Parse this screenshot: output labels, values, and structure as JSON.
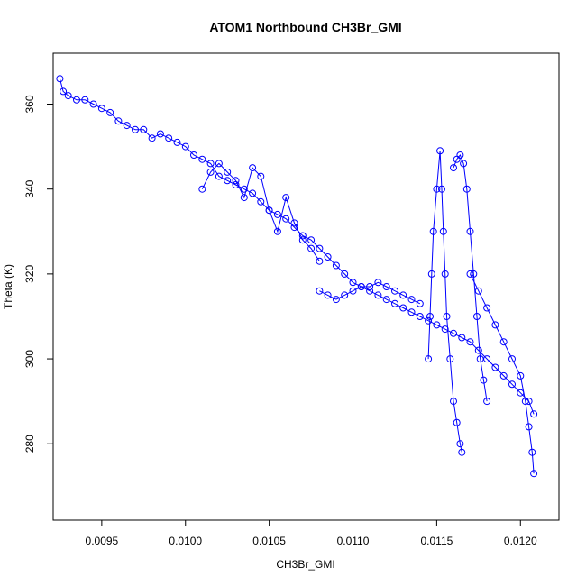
{
  "chart_data": {
    "type": "scatter",
    "title": "ATOM1 Northbound CH3Br_GMI",
    "xlabel": "CH3Br_GMI",
    "ylabel": "Theta (K)",
    "xlim": [
      0.00921,
      0.01223
    ],
    "ylim": [
      262,
      372
    ],
    "x_ticks": [
      {
        "value": 0.0095,
        "label": "0.0095"
      },
      {
        "value": 0.01,
        "label": "0.0100"
      },
      {
        "value": 0.0105,
        "label": "0.0105"
      },
      {
        "value": 0.011,
        "label": "0.0110"
      },
      {
        "value": 0.0115,
        "label": "0.0115"
      },
      {
        "value": 0.012,
        "label": "0.0120"
      }
    ],
    "y_ticks": [
      {
        "value": 280,
        "label": "280"
      },
      {
        "value": 300,
        "label": "300"
      },
      {
        "value": 320,
        "label": "320"
      },
      {
        "value": 340,
        "label": "340"
      },
      {
        "value": 360,
        "label": "360"
      }
    ],
    "grid": false,
    "legend": "none",
    "marker": "open-circle",
    "color": "#0000ff",
    "series": [
      {
        "x": [
          0.00925,
          0.00927,
          0.0093,
          0.00935,
          0.0094,
          0.00945,
          0.0095,
          0.00955,
          0.0096,
          0.00965,
          0.0097,
          0.00975,
          0.0098,
          0.00985,
          0.0099,
          0.00995,
          0.01,
          0.01005,
          0.0101,
          0.01015,
          0.0102,
          0.01025,
          0.0103,
          0.01035,
          0.0104,
          0.01045,
          0.0105,
          0.01055,
          0.0106,
          0.01065,
          0.0107,
          0.01075,
          0.0108,
          0.01085,
          0.0109,
          0.01095,
          0.011,
          0.01105,
          0.0111,
          0.01115,
          0.0112,
          0.01125,
          0.0113,
          0.01135,
          0.0114,
          0.01145,
          0.0115,
          0.01155,
          0.0116,
          0.01165,
          0.0117,
          0.01175,
          0.0118,
          0.01185,
          0.0119,
          0.01195,
          0.012,
          0.01205,
          0.01208
        ],
        "y": [
          366,
          363,
          362,
          361,
          361,
          360,
          359,
          358,
          356,
          355,
          354,
          354,
          352,
          353,
          352,
          351,
          350,
          348,
          347,
          346,
          343,
          342,
          341,
          340,
          339,
          337,
          335,
          334,
          333,
          331,
          329,
          328,
          326,
          324,
          322,
          320,
          318,
          317,
          316,
          315,
          314,
          313,
          312,
          311,
          310,
          309,
          308,
          307,
          306,
          305,
          304,
          302,
          300,
          298,
          296,
          294,
          292,
          290,
          287
        ]
      },
      {
        "x": [
          0.0101,
          0.01015,
          0.0102,
          0.01025,
          0.0103,
          0.01035,
          0.0104,
          0.01045,
          0.0105,
          0.01055,
          0.0106,
          0.01065,
          0.0107,
          0.01075,
          0.0108
        ],
        "y": [
          340,
          344,
          346,
          344,
          342,
          338,
          345,
          343,
          335,
          330,
          338,
          332,
          328,
          326,
          323
        ]
      },
      {
        "x": [
          0.0108,
          0.01085,
          0.0109,
          0.01095,
          0.011,
          0.01105,
          0.0111,
          0.01115,
          0.0112,
          0.01125,
          0.0113,
          0.01135,
          0.0114
        ],
        "y": [
          316,
          315,
          314,
          315,
          316,
          317,
          317,
          318,
          317,
          316,
          315,
          314,
          313
        ]
      },
      {
        "x": [
          0.01145,
          0.01146,
          0.01147,
          0.01148,
          0.0115,
          0.01152,
          0.01153,
          0.01154,
          0.01155,
          0.01156,
          0.01158,
          0.0116,
          0.01162,
          0.01164,
          0.01165
        ],
        "y": [
          300,
          310,
          320,
          330,
          340,
          349,
          340,
          330,
          320,
          310,
          300,
          290,
          285,
          280,
          278
        ]
      },
      {
        "x": [
          0.0116,
          0.01162,
          0.01164,
          0.01166,
          0.01168,
          0.0117,
          0.01172,
          0.01174,
          0.01176,
          0.01178,
          0.0118
        ],
        "y": [
          345,
          347,
          348,
          346,
          340,
          330,
          320,
          310,
          300,
          295,
          290
        ]
      },
      {
        "x": [
          0.0117,
          0.01175,
          0.0118,
          0.01185,
          0.0119,
          0.01195,
          0.012,
          0.01203,
          0.01205,
          0.01207,
          0.01208
        ],
        "y": [
          320,
          316,
          312,
          308,
          304,
          300,
          296,
          290,
          284,
          278,
          273
        ]
      }
    ]
  }
}
